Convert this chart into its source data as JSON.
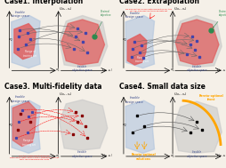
{
  "bg_color": "#f5f0e8",
  "panel_titles": [
    "Case1. Interpolation",
    "Case2. Extrapolation",
    "Case3. Multi-fidelity data",
    "Case4. Small data size"
  ],
  "title_fontsize": 5.5,
  "feasible_design_color": "#b0c4de",
  "feasible_obj_color": "#c8c8c8",
  "training_range_color": "#e06060",
  "training_range_alpha": 0.85,
  "desired_obj_color": "#2d8a4e",
  "data_point_color": "#4444aa",
  "arrow_color": "#555555"
}
